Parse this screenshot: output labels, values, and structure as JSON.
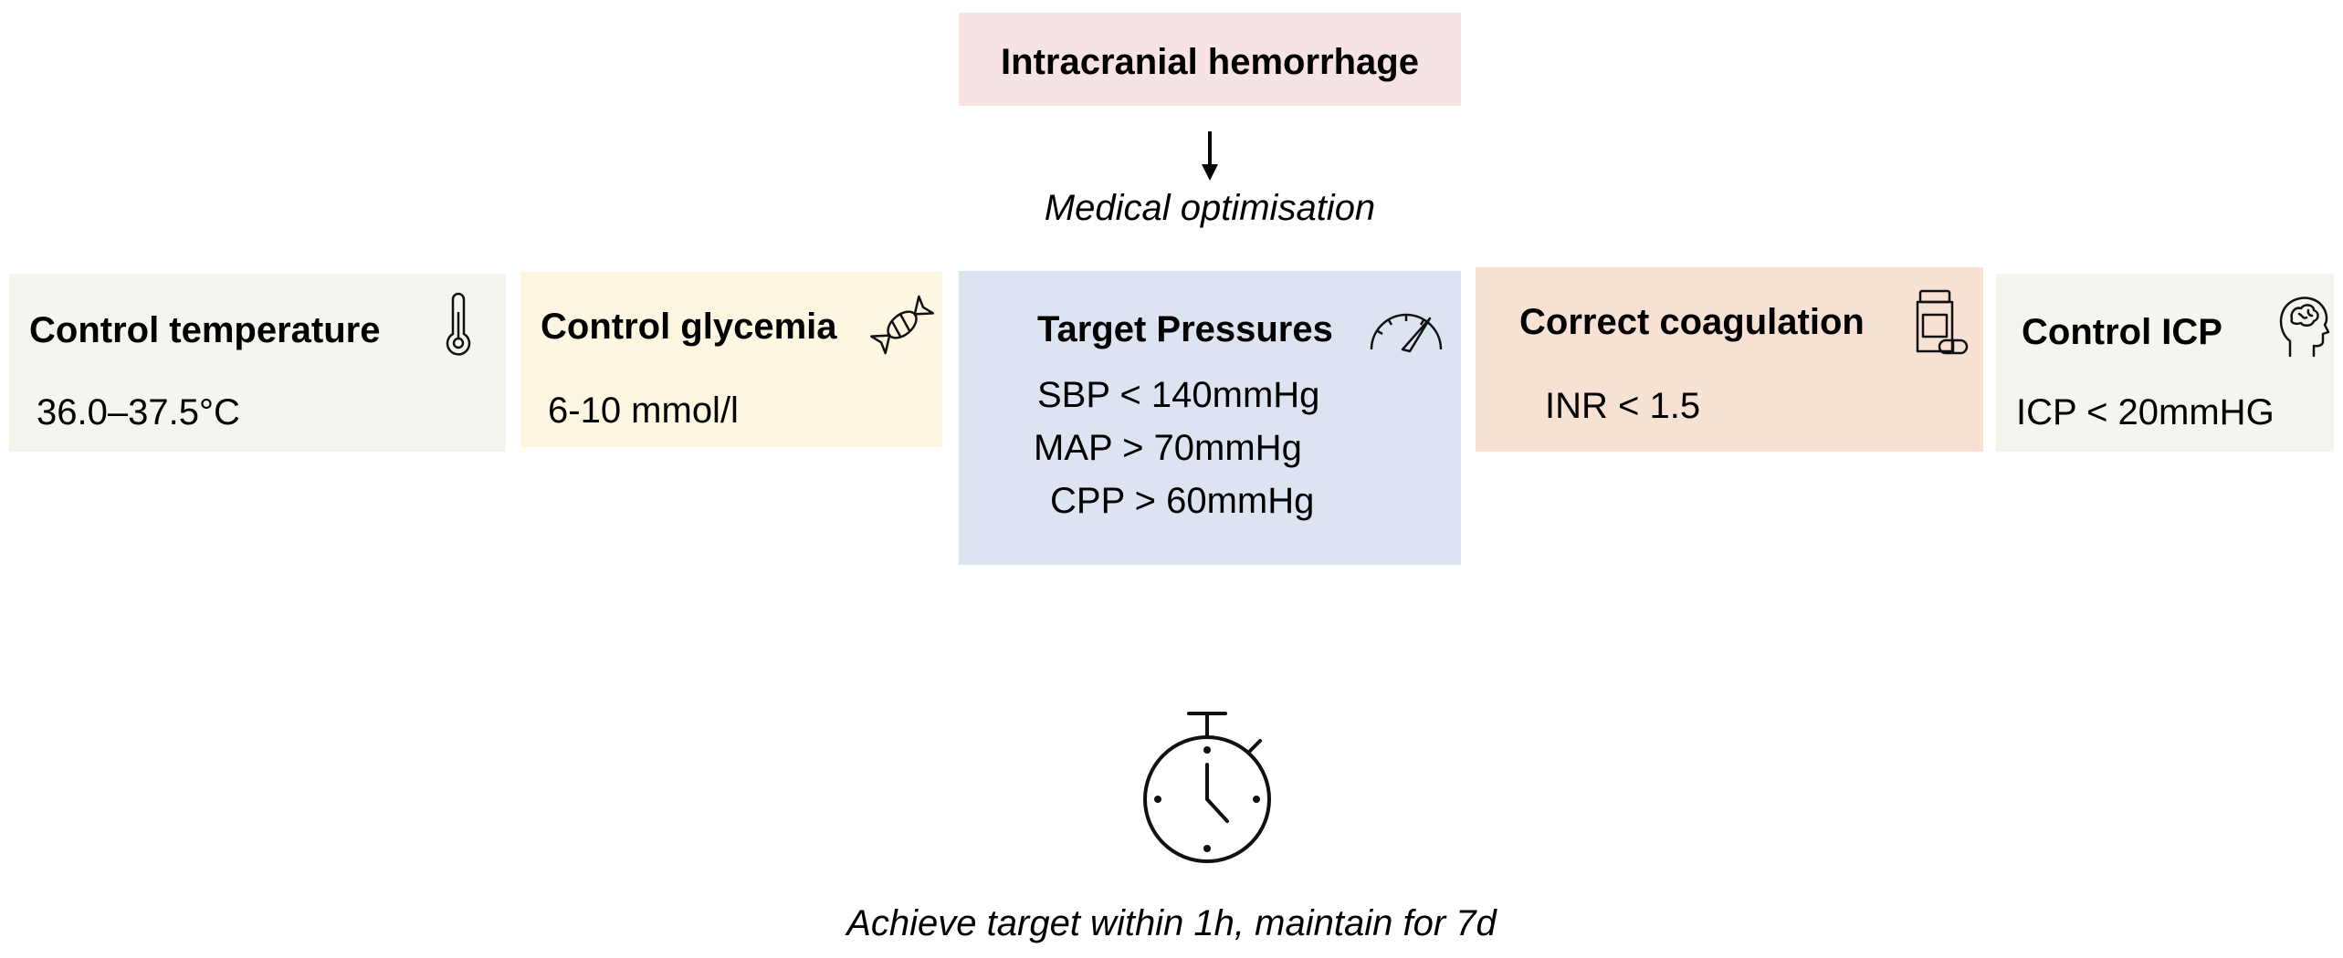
{
  "colors": {
    "hemorrhage": "#f7e3e4",
    "temperature": "#f3f6ef",
    "glycemia": "#fdf7e2",
    "pressures": "#dce3f1",
    "coagulation": "#f7e1d3",
    "icp": "#f3f6ef"
  },
  "header": {
    "title": "Intracranial hemorrhage"
  },
  "step": {
    "label": "Medical optimisation"
  },
  "boxes": {
    "temperature": {
      "title": "Control temperature",
      "value": "36.0–37.5°C",
      "icon": "thermometer-icon"
    },
    "glycemia": {
      "title": "Control glycemia",
      "value": "6-10 mmol/l",
      "icon": "candy-icon"
    },
    "pressures": {
      "title": "Target Pressures",
      "values": [
        "SBP < 140mmHg",
        "MAP > 70mmHg",
        "CPP > 60mmHg"
      ],
      "icon": "gauge-icon"
    },
    "coagulation": {
      "title": "Correct coagulation",
      "value": "INR < 1.5",
      "icon": "pill-bottle-icon"
    },
    "icp": {
      "title": "Control ICP",
      "value": "ICP < 20mmHG",
      "icon": "brain-head-icon"
    }
  },
  "footer": {
    "label": "Achieve target within 1h, maintain for 7d",
    "icon": "stopwatch-icon"
  }
}
